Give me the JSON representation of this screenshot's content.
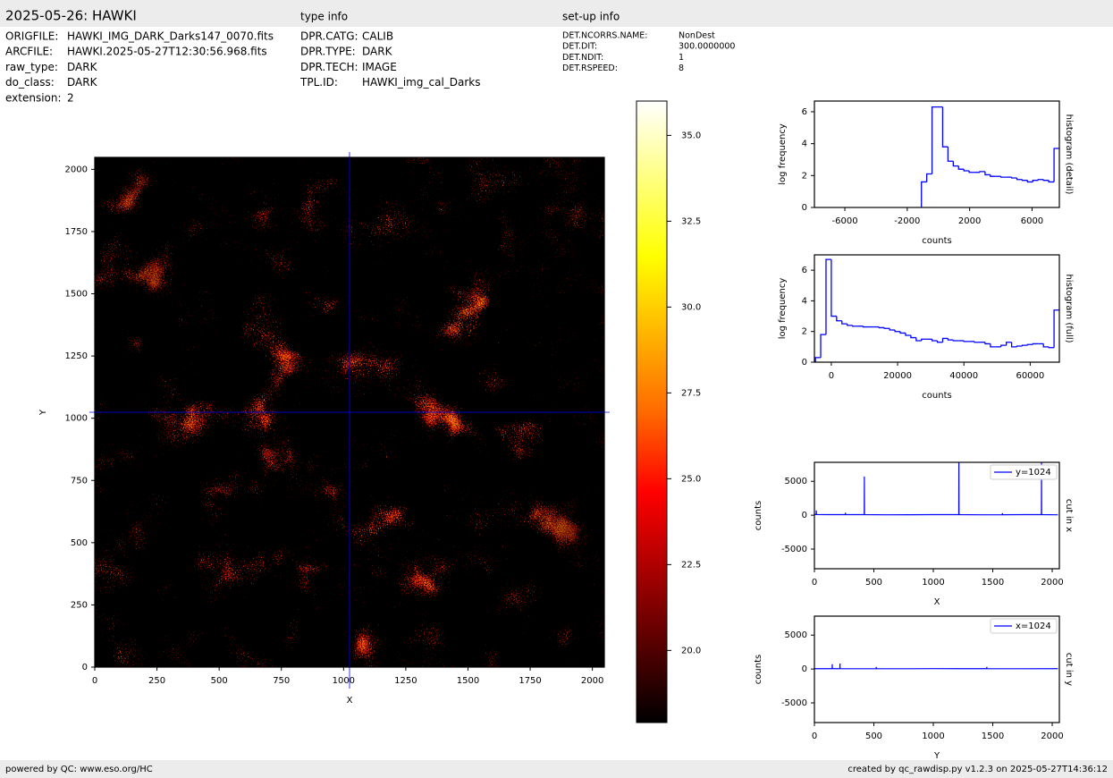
{
  "header": {
    "title": "2025-05-26: HAWKI",
    "type_info_title": "type info",
    "setup_info_title": "set-up info"
  },
  "file_info": [
    [
      "ORIGFILE:",
      "HAWKI_IMG_DARK_Darks147_0070.fits"
    ],
    [
      "ARCFILE:",
      "HAWKI.2025-05-27T12:30:56.968.fits"
    ],
    [
      "raw_type:",
      "DARK"
    ],
    [
      "do_class:",
      "DARK"
    ],
    [
      "extension:",
      "2"
    ]
  ],
  "type_info": [
    [
      "DPR.CATG:",
      "CALIB"
    ],
    [
      "DPR.TYPE:",
      "DARK"
    ],
    [
      "DPR.TECH:",
      "IMAGE"
    ],
    [
      "TPL.ID:",
      "HAWKI_img_cal_Darks"
    ]
  ],
  "setup_info": [
    [
      "DET.NCORRS.NAME:",
      "NonDest"
    ],
    [
      "DET.DIT:",
      "300.0000000"
    ],
    [
      "DET.NDIT:",
      "1"
    ],
    [
      "DET.RSPEED:",
      "8"
    ]
  ],
  "footer": {
    "left": "powered by QC: www.eso.org/HC",
    "right": "created by qc_rawdisp.py v1.2.3 on 2025-05-27T14:36:12"
  },
  "chart_data": [
    {
      "type": "image",
      "xlabel": "X",
      "ylabel": "Y",
      "xlim": [
        0,
        2048
      ],
      "ylim": [
        0,
        2048
      ],
      "xticks": [
        0,
        250,
        500,
        750,
        1000,
        1250,
        1500,
        1750,
        2000
      ],
      "yticks": [
        0,
        250,
        500,
        750,
        1000,
        1250,
        1500,
        1750,
        2000
      ],
      "crosshair": [
        1024,
        1024
      ],
      "crosshair_color": "#0000ff",
      "colormap": "hot",
      "clim": [
        17.9,
        36.0
      ],
      "cticks": [
        {
          "value": 20,
          "label": "20.0"
        },
        22.5,
        {
          "value": 25,
          "label": "25.0"
        },
        27.5,
        {
          "value": 30,
          "label": "30.0"
        },
        32.5,
        {
          "value": 35,
          "label": "35.0"
        }
      ]
    },
    {
      "type": "histogram",
      "title": "histogram (detail)",
      "xlabel": "counts",
      "ylabel": "log frequency",
      "color": "#0000ff",
      "xlim": [
        -7950,
        7750
      ],
      "ylim": [
        0,
        6.67
      ],
      "xticks": [
        -6000,
        -2000,
        2000,
        6000
      ],
      "yticks": [
        0,
        2,
        4,
        6
      ],
      "bins": [
        -1090,
        -750,
        -410,
        -70,
        270,
        610,
        950,
        1290,
        1630,
        1970,
        2310,
        2650,
        2990,
        3330,
        3670,
        4010,
        4350,
        4690,
        5030,
        5370,
        5710,
        6050,
        6390,
        6730,
        7070,
        7410,
        7750
      ],
      "values": [
        1.6,
        2.1,
        6.3,
        6.3,
        3.8,
        2.9,
        2.6,
        2.4,
        2.3,
        2.2,
        2.2,
        2.25,
        2.05,
        1.95,
        1.95,
        1.9,
        1.9,
        1.85,
        1.75,
        1.7,
        1.6,
        1.7,
        1.75,
        1.7,
        1.6,
        3.7
      ]
    },
    {
      "type": "histogram",
      "title": "histogram (full)",
      "xlabel": "counts",
      "ylabel": "log frequency",
      "color": "#0000ff",
      "xlim": [
        -5100,
        68800
      ],
      "ylim": [
        0,
        7
      ],
      "xticks": [
        0,
        20000,
        40000,
        60000
      ],
      "yticks": [
        0,
        2,
        4,
        6
      ],
      "bins": [
        -4800,
        -3200,
        -1600,
        0,
        1600,
        3200,
        4800,
        6400,
        8000,
        9600,
        11200,
        12800,
        14400,
        16000,
        17600,
        19200,
        20800,
        22400,
        24000,
        25600,
        27200,
        28800,
        30400,
        32000,
        33600,
        35200,
        36800,
        38400,
        40000,
        41600,
        43200,
        44800,
        46400,
        48000,
        49600,
        51200,
        52800,
        54400,
        56000,
        57600,
        59200,
        60800,
        62400,
        64000,
        65600,
        67200,
        68800
      ],
      "values": [
        0.3,
        1.8,
        6.7,
        3.0,
        2.7,
        2.5,
        2.4,
        2.35,
        2.35,
        2.3,
        2.3,
        2.3,
        2.25,
        2.2,
        2.1,
        2.0,
        1.9,
        1.75,
        1.6,
        1.4,
        1.5,
        1.5,
        1.4,
        1.3,
        1.55,
        1.45,
        1.4,
        1.4,
        1.35,
        1.35,
        1.3,
        1.3,
        1.2,
        1.0,
        1.0,
        1.1,
        1.3,
        1.0,
        1.05,
        1.1,
        1.15,
        1.2,
        1.2,
        1.0,
        0.95,
        3.4
      ]
    },
    {
      "type": "line",
      "title": "cut in x",
      "xlabel": "X",
      "ylabel": "counts",
      "legend": "upper right",
      "xlim": [
        0,
        2060
      ],
      "ylim": [
        -7900,
        7800
      ],
      "xticks": [
        0,
        500,
        1000,
        1500,
        2000
      ],
      "yticks": [
        -5000,
        0,
        5000
      ],
      "x": [
        0,
        15,
        16,
        17,
        120,
        260,
        261,
        262,
        419,
        420,
        421,
        600,
        800,
        1000,
        1214,
        1215,
        1216,
        1400,
        1580,
        1581,
        1582,
        1800,
        1909,
        1910,
        1911,
        2047
      ],
      "series": [
        {
          "name": "y=1024",
          "color": "#0000ff",
          "values": [
            100,
            120,
            700,
            100,
            80,
            90,
            350,
            90,
            80,
            5700,
            80,
            60,
            70,
            80,
            90,
            7800,
            80,
            60,
            70,
            300,
            70,
            80,
            90,
            7800,
            80,
            60
          ]
        }
      ]
    },
    {
      "type": "line",
      "title": "cut in y",
      "xlabel": "Y",
      "ylabel": "counts",
      "legend": "upper right",
      "xlim": [
        0,
        2060
      ],
      "ylim": [
        -7900,
        7800
      ],
      "xticks": [
        0,
        500,
        1000,
        1500,
        2000
      ],
      "yticks": [
        -5000,
        0,
        5000
      ],
      "x": [
        0,
        149,
        150,
        151,
        214,
        215,
        216,
        400,
        519,
        520,
        521,
        800,
        1000,
        1200,
        1449,
        1450,
        1451,
        1700,
        2047
      ],
      "series": [
        {
          "name": "x=1024",
          "color": "#0000ff",
          "values": [
            50,
            60,
            700,
            60,
            50,
            800,
            50,
            40,
            60,
            300,
            50,
            40,
            60,
            50,
            60,
            300,
            50,
            40,
            50
          ]
        }
      ]
    }
  ]
}
